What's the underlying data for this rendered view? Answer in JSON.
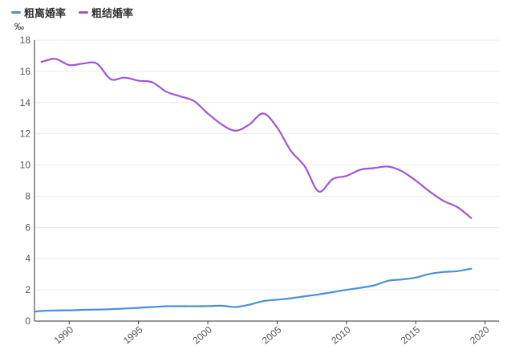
{
  "chart_data": {
    "type": "line",
    "title": "",
    "ylabel": "‰",
    "xlabel": "",
    "xlim": [
      1987.5,
      2021
    ],
    "ylim": [
      0,
      18
    ],
    "yticks": [
      0,
      2,
      4,
      6,
      8,
      10,
      12,
      14,
      16,
      18
    ],
    "xticks": [
      1990,
      1995,
      2000,
      2005,
      2010,
      2015,
      2020
    ],
    "grid": true,
    "legend_position": "top-left",
    "series": [
      {
        "name": "粗离婚率",
        "color": "#4a8fdb",
        "x": [
          1987.5,
          1988,
          1989,
          1990,
          1991,
          1992,
          1993,
          1994,
          1995,
          1996,
          1997,
          1998,
          1999,
          2000,
          2001,
          2002,
          2003,
          2004,
          2005,
          2006,
          2007,
          2008,
          2009,
          2010,
          2011,
          2012,
          2013,
          2014,
          2015,
          2016,
          2017,
          2018,
          2019
        ],
        "values": [
          0.6,
          0.65,
          0.68,
          0.69,
          0.72,
          0.74,
          0.76,
          0.8,
          0.85,
          0.9,
          0.95,
          0.95,
          0.95,
          0.96,
          0.98,
          0.9,
          1.05,
          1.28,
          1.37,
          1.46,
          1.59,
          1.71,
          1.85,
          2.0,
          2.13,
          2.29,
          2.58,
          2.67,
          2.79,
          3.02,
          3.15,
          3.2,
          3.36
        ]
      },
      {
        "name": "粗结婚率",
        "color": "#a154d8",
        "x": [
          1988,
          1989,
          1990,
          1991,
          1992,
          1993,
          1994,
          1995,
          1996,
          1997,
          1998,
          1999,
          2000,
          2001,
          2002,
          2003,
          2004,
          2005,
          2006,
          2007,
          2008,
          2009,
          2010,
          2011,
          2012,
          2013,
          2014,
          2015,
          2016,
          2017,
          2018,
          2019
        ],
        "values": [
          16.6,
          16.8,
          16.4,
          16.5,
          16.5,
          15.5,
          15.6,
          15.4,
          15.3,
          14.7,
          14.4,
          14.1,
          13.3,
          12.6,
          12.2,
          12.6,
          13.3,
          12.4,
          10.9,
          9.9,
          8.3,
          9.1,
          9.3,
          9.7,
          9.8,
          9.9,
          9.6,
          9.0,
          8.3,
          7.7,
          7.3,
          6.6
        ]
      }
    ]
  }
}
